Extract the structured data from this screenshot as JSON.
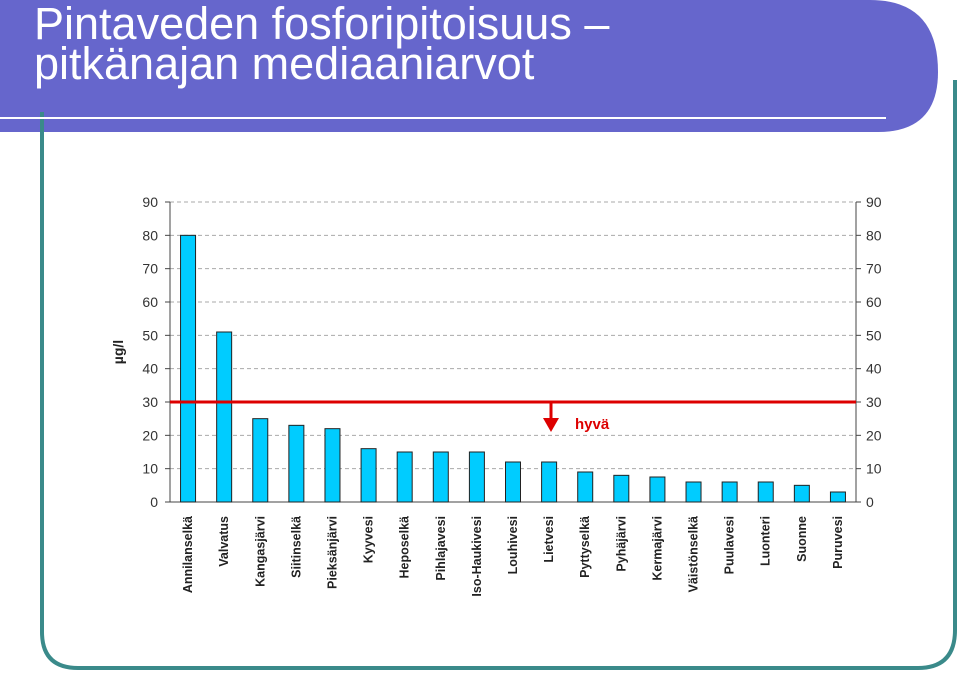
{
  "slide": {
    "title_line1": "Pintaveden fosforipitoisuus –",
    "title_line2": "pitkänajan mediaaniarvot",
    "colors": {
      "header": "#6666cc",
      "frame": "#3a8a8a",
      "bar": "#00ccff",
      "threshold": "#dd0000"
    }
  },
  "chart_data": {
    "type": "bar",
    "categories": [
      "Annilanselkä",
      "Valvatus",
      "Kangasjärvi",
      "Siitinselkä",
      "Pieksänjärvi",
      "Kyyvesi",
      "Heposelkä",
      "Pihlajavesi",
      "Iso-Haukivesi",
      "Louhivesi",
      "Lietvesi",
      "Pyttyselkä",
      "Pyhäjärvi",
      "Kermajärvi",
      "Väistönselkä",
      "Puulavesi",
      "Luonteri",
      "Suonne",
      "Puruvesi"
    ],
    "values": [
      80,
      51,
      25,
      23,
      22,
      16,
      15,
      15,
      15,
      12,
      12,
      9,
      8,
      7.5,
      6,
      6,
      6,
      5,
      3
    ],
    "ylabel": "µg/l",
    "xlabel": "",
    "ylim": [
      0,
      90
    ],
    "yticks": [
      0,
      10,
      20,
      30,
      40,
      50,
      60,
      70,
      80,
      90
    ],
    "secondary_y_axis": true,
    "grid": "horizontal dashed",
    "threshold": {
      "value": 30,
      "label": "hyvä",
      "arrow": "down"
    }
  }
}
